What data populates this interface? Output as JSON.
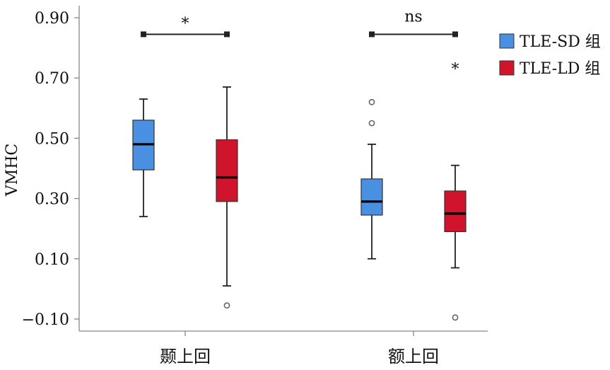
{
  "chart_data": {
    "type": "box",
    "ylabel": "VMHC",
    "ylim": [
      -0.14,
      0.94
    ],
    "yticks": [
      -0.1,
      0.1,
      0.3,
      0.5,
      0.7,
      0.9
    ],
    "ytick_labels": [
      "−0.10",
      "0.10",
      "0.30",
      "0.50",
      "0.70",
      "0.90"
    ],
    "categories": [
      "颞上回",
      "额上回"
    ],
    "series": [
      {
        "name": "TLE-SD 组",
        "color": "#4a90e2",
        "boxes": [
          {
            "category": "颞上回",
            "whisker_low": 0.24,
            "q1": 0.395,
            "median": 0.48,
            "q3": 0.56,
            "whisker_high": 0.63,
            "outliers": [],
            "extremes": []
          },
          {
            "category": "额上回",
            "whisker_low": 0.1,
            "q1": 0.245,
            "median": 0.29,
            "q3": 0.365,
            "whisker_high": 0.48,
            "outliers": [
              0.55,
              0.62
            ],
            "extremes": []
          }
        ]
      },
      {
        "name": "TLE-LD 组",
        "color": "#d0142c",
        "boxes": [
          {
            "category": "颞上回",
            "whisker_low": 0.01,
            "q1": 0.29,
            "median": 0.37,
            "q3": 0.495,
            "whisker_high": 0.67,
            "outliers": [
              -0.055
            ],
            "extremes": []
          },
          {
            "category": "额上回",
            "whisker_low": 0.07,
            "q1": 0.19,
            "median": 0.25,
            "q3": 0.325,
            "whisker_high": 0.41,
            "outliers": [
              -0.095
            ],
            "extremes": [
              0.74
            ]
          }
        ]
      }
    ],
    "significance": [
      {
        "category": "颞上回",
        "label": "*",
        "y": 0.845
      },
      {
        "category": "额上回",
        "label": "ns",
        "y": 0.845
      }
    ],
    "legend_position": "top-right"
  }
}
